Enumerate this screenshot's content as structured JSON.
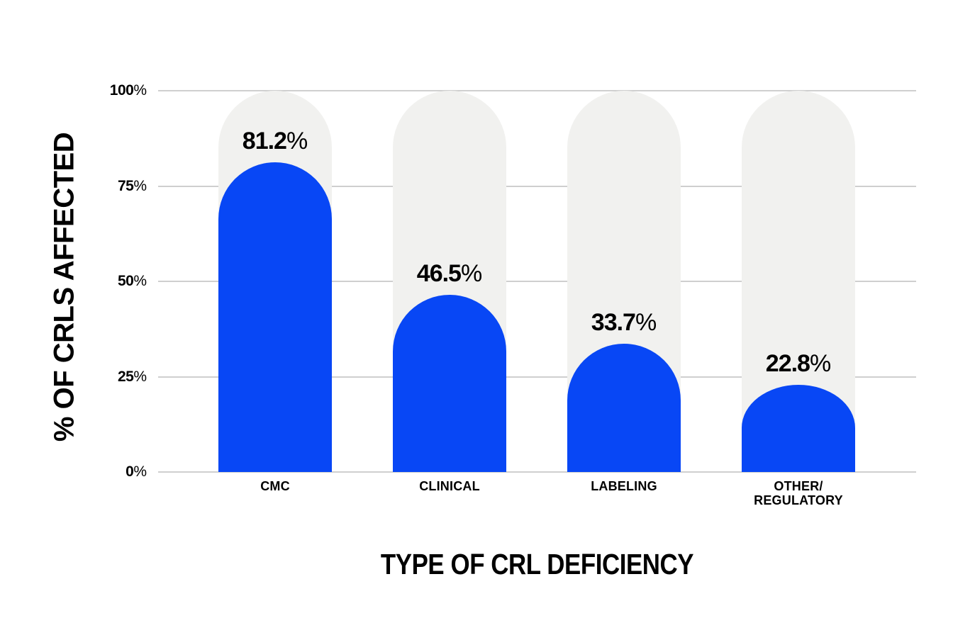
{
  "chart_data": {
    "type": "bar",
    "title": "",
    "xlabel": "TYPE OF CRL DEFICIENCY",
    "ylabel": "% OF CRLS AFFECTED",
    "categories": [
      "CMC",
      "CLINICAL",
      "LABELING",
      "OTHER/\nREGULATORY"
    ],
    "values": [
      81.2,
      46.5,
      33.7,
      22.8
    ],
    "value_labels": [
      "81.2%",
      "46.5%",
      "33.7%",
      "22.8%"
    ],
    "y_ticks": [
      "0%",
      "25%",
      "50%",
      "75%",
      "100%"
    ],
    "ylim": [
      0,
      100
    ],
    "grid": true,
    "legend": false,
    "layout_hints": {
      "bar_caps": "rounded-pill-top",
      "track_full_height": true,
      "gridlines_behind_bars": true
    },
    "colors": {
      "bar_fill": "#0847f5",
      "bar_track": "#f1f1ef",
      "gridline": "#cfcfcf",
      "text": "#000000",
      "background": "#ffffff"
    }
  }
}
